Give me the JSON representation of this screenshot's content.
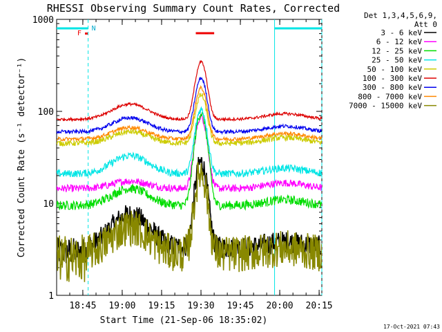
{
  "chart_data": {
    "type": "line",
    "title": "RHESSI Observing Summary Count Rates, Corrected",
    "xlabel": "Start Time (21-Sep-06 18:35:02)",
    "ylabel": "Corrected Count Rate (s⁻¹ detector⁻¹)",
    "yscale": "log",
    "ylim": [
      1,
      1000
    ],
    "xlim_minutes_since_start": [
      0,
      101
    ],
    "x_tick_labels": [
      "18:45",
      "19:00",
      "19:15",
      "19:30",
      "19:45",
      "20:00",
      "20:15"
    ],
    "y_tick_labels": [
      "1",
      "10",
      "100",
      "1000"
    ],
    "legend_header": [
      "Det 1,3,4,5,6,9,",
      "Att 0"
    ],
    "legend_position": "right, outside plot",
    "timestamp": "17-Oct-2021 07:43",
    "flag_labels": [
      "F",
      "N"
    ],
    "series": [
      {
        "name": "3 - 6 keV",
        "color": "#000000",
        "base": 3.3,
        "hump": 7.5,
        "peak": 28,
        "noise": 0.12
      },
      {
        "name": "6 - 12 keV",
        "color": "#ff00ff",
        "base": 14.5,
        "hump": 17.5,
        "peak": 88,
        "noise": 0.04
      },
      {
        "name": "12 - 25 keV",
        "color": "#00dd00",
        "base": 9.5,
        "hump": 14.5,
        "peak": 95,
        "noise": 0.05
      },
      {
        "name": "25 - 50 keV",
        "color": "#00e5e5",
        "base": 21,
        "hump": 33,
        "peak": 105,
        "noise": 0.04
      },
      {
        "name": "50 - 100 keV",
        "color": "#cccc00",
        "base": 45,
        "hump": 60,
        "peak": 150,
        "noise": 0.03
      },
      {
        "name": "100 - 300 keV",
        "color": "#dd0000",
        "base": 82,
        "hump": 120,
        "peak": 345,
        "noise": 0.015
      },
      {
        "name": "300 - 800 keV",
        "color": "#0000ee",
        "base": 60,
        "hump": 85,
        "peak": 230,
        "noise": 0.02
      },
      {
        "name": "800 - 7000 keV",
        "color": "#ff8800",
        "base": 50,
        "hump": 67,
        "peak": 180,
        "noise": 0.02
      },
      {
        "name": "7000 - 15000 keV",
        "color": "#888800",
        "base": 2.8,
        "hump": 5.5,
        "peak": 22,
        "noise": 0.2
      }
    ],
    "hump_center_minutes": 28,
    "peak_center_minutes": 55,
    "data_gap_before_minutes": 12,
    "intervals": [
      {
        "label": "night (cyan bar)",
        "color": "#00e5e5",
        "start": 0,
        "end": 12
      },
      {
        "label": "night (cyan bar)",
        "color": "#00e5e5",
        "start": 83,
        "end": 101
      },
      {
        "label": "flare (red bar)",
        "color": "#ee0000",
        "start": 53,
        "end": 60
      }
    ],
    "vertical_lines_minutes": [
      12,
      83,
      101
    ]
  }
}
